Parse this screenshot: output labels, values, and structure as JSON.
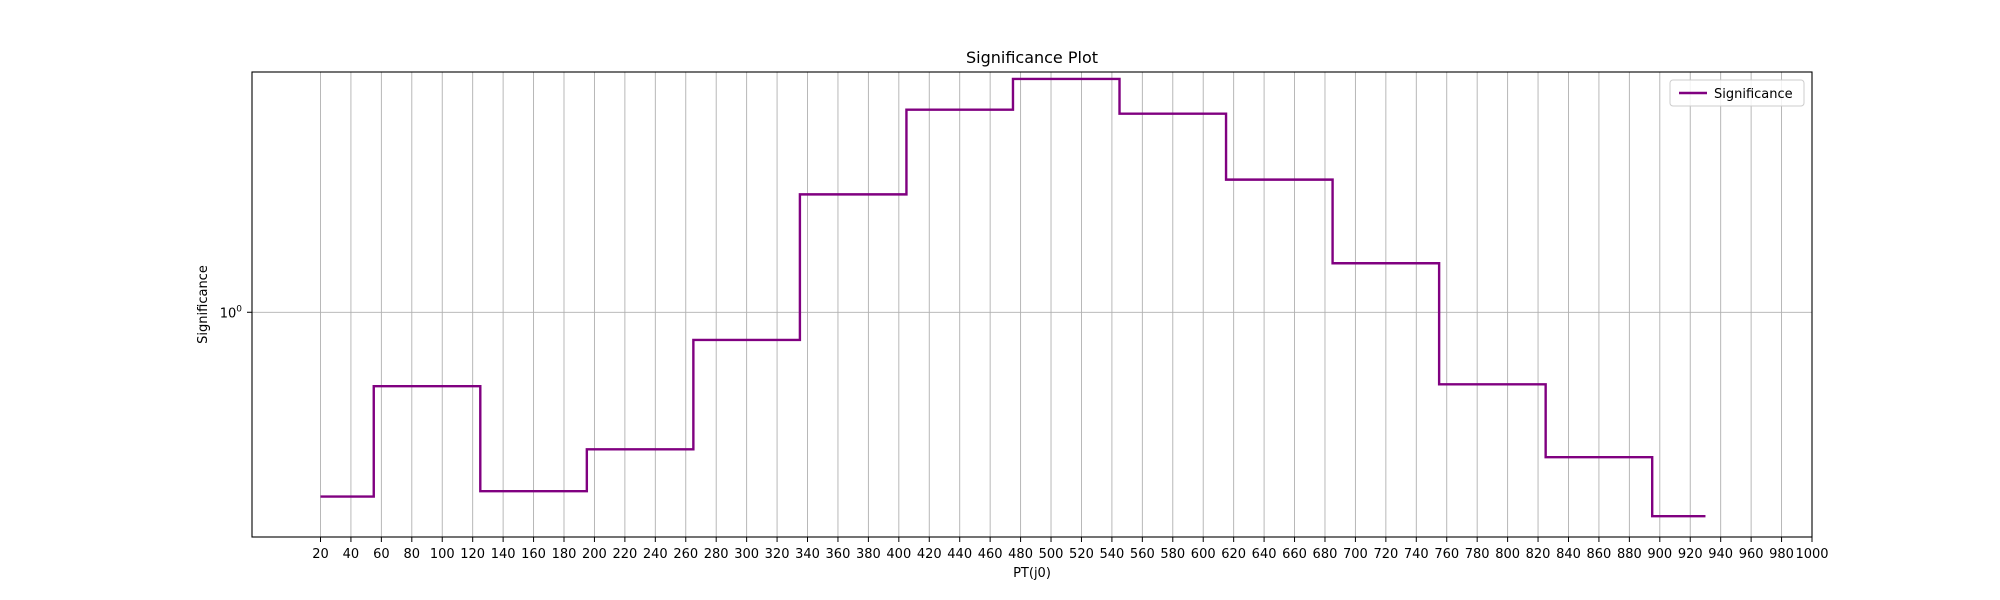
{
  "chart_data": {
    "type": "line",
    "drawstyle": "steps-post",
    "title": "Significance Plot",
    "xlabel": "PT(j0)",
    "ylabel": "Significance",
    "xlim": [
      -25,
      1000
    ],
    "ylim": [
      0.28,
      3.9
    ],
    "yscale": "log",
    "grid": true,
    "legend": "top-right",
    "x_ticks": [
      20,
      40,
      60,
      80,
      100,
      120,
      140,
      160,
      180,
      200,
      220,
      240,
      260,
      280,
      300,
      320,
      340,
      360,
      380,
      400,
      420,
      440,
      460,
      480,
      500,
      520,
      540,
      560,
      580,
      600,
      620,
      640,
      660,
      680,
      700,
      720,
      740,
      760,
      780,
      800,
      820,
      840,
      860,
      880,
      900,
      920,
      940,
      960,
      980,
      1000
    ],
    "y_ticks": [
      {
        "value": 1,
        "label": "10",
        "sup": "0"
      }
    ],
    "series": [
      {
        "name": "Significance",
        "color": "#800080",
        "x": [
          20,
          55,
          125,
          195,
          265,
          335,
          405,
          475,
          545,
          615,
          685,
          755,
          825,
          895,
          930
        ],
        "y": [
          0.352,
          0.658,
          0.363,
          0.46,
          0.855,
          1.95,
          3.15,
          3.75,
          3.08,
          2.12,
          1.32,
          0.665,
          0.44,
          0.315,
          0.315
        ]
      }
    ]
  }
}
